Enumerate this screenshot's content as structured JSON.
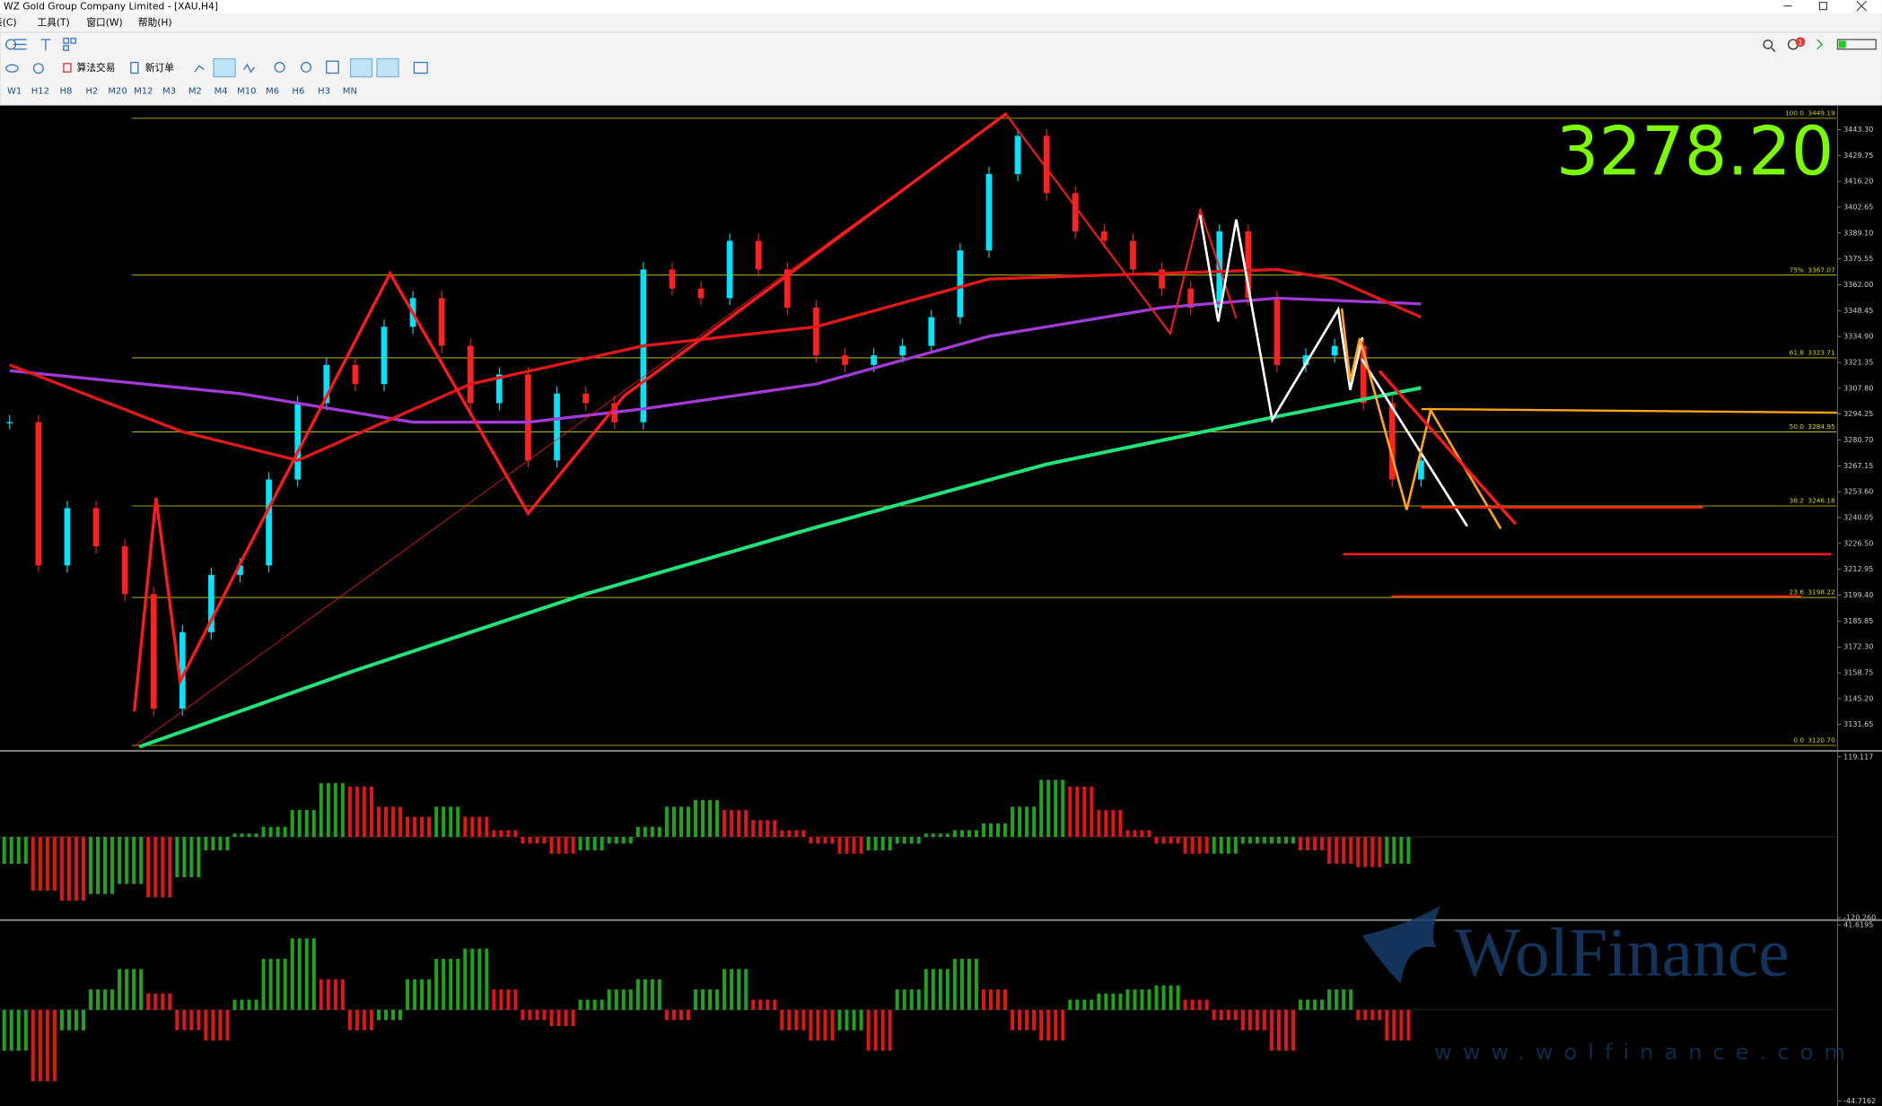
{
  "window": {
    "title": "WZ Gold Group Company Limited - [XAU,H4]",
    "menus": [
      "表(C)",
      "工具(T)",
      "窗口(W)",
      "帮助(H)"
    ],
    "toolbar": [
      "算法交易",
      "新订单"
    ],
    "timeframes": [
      "W1",
      "H12",
      "H8",
      "H2",
      "M20",
      "M12",
      "M3",
      "M2",
      "M4",
      "M10",
      "M6",
      "H6",
      "H3",
      "MN"
    ],
    "alert_count": 1
  },
  "chart_data": [
    {
      "type": "candlestick-line",
      "ylim": [
        3118.45,
        3455.87
      ],
      "yticks": [
        {
          "value": 3443.3,
          "label": "3443.30"
        },
        3429.75,
        {
          "value": 3416.2,
          "label": "3416.20"
        },
        3402.65,
        {
          "value": 3389.1,
          "label": "3389.10"
        },
        3375.55,
        {
          "value": 3362,
          "label": "3362.00"
        },
        3348.45,
        {
          "value": 3334.9,
          "label": "3334.90"
        },
        3321.35,
        {
          "value": 3307.8,
          "label": "3307.80"
        },
        3294.25,
        {
          "value": 3280.7,
          "label": "3280.70"
        },
        3267.15,
        {
          "value": 3253.6,
          "label": "3253.60"
        },
        3240.05,
        {
          "value": 3226.5,
          "label": "3226.50"
        },
        3212.95,
        {
          "value": 3199.4,
          "label": "3199.40"
        },
        3185.85,
        {
          "value": 3172.3,
          "label": "3172.30"
        },
        3158.75,
        {
          "value": 3145.2,
          "label": "3145.20"
        },
        3131.65
      ],
      "current_price": {
        "value": 3278.2,
        "label": "3278.20"
      },
      "fib_levels": [
        {
          "level": "100.0",
          "price": 3449.19
        },
        {
          "level": "75%",
          "price": 3367.07
        },
        {
          "level": "61.8",
          "price": 3323.71
        },
        {
          "level": "50.0",
          "price": 3284.95
        },
        {
          "level": "38.2",
          "price": 3246.18
        },
        {
          "level": "23.6",
          "price": 3198.22
        },
        {
          "level": "0.0",
          "price": {
            "value": 3120.7,
            "label": "3120.70"
          }
        }
      ],
      "series": [
        {
          "name": "close",
          "color": "#00e5ff",
          "x": [
            0,
            1,
            2,
            3,
            4,
            5,
            6,
            7,
            8,
            9,
            10,
            11,
            12,
            13,
            14,
            15,
            16,
            17,
            18,
            19,
            20,
            21,
            22,
            23,
            24,
            25,
            26,
            27,
            28,
            29,
            30,
            31,
            32,
            33,
            34,
            35,
            36,
            37,
            38,
            39,
            40,
            41,
            42,
            43,
            44,
            45,
            46,
            47,
            48,
            49
          ],
          "values": [
            3290,
            3215,
            3245,
            3225,
            3200,
            3140,
            3180,
            3210,
            3215,
            3260,
            3300,
            3320,
            3310,
            3340,
            3355,
            3330,
            3300,
            3315,
            3270,
            3305,
            3300,
            3290,
            3370,
            3360,
            3355,
            3385,
            3370,
            3350,
            3325,
            3320,
            3325,
            3330,
            3345,
            3380,
            3420,
            3440,
            3410,
            3390,
            3385,
            3370,
            3360,
            3350,
            3390,
            3355,
            3320,
            3325,
            3330,
            3300,
            3260,
            3270
          ]
        },
        {
          "name": "ma-green",
          "color": "#22e27a",
          "x": [
            4.5,
            12,
            20,
            28,
            36,
            44,
            49
          ],
          "values": [
            3120,
            3160,
            3200,
            3235,
            3268,
            3293,
            3308
          ]
        },
        {
          "name": "ma-purple",
          "color": "#a23ad6",
          "x": [
            0,
            8,
            14,
            18,
            22,
            28,
            34,
            40,
            44,
            49
          ],
          "values": [
            3317,
            3305,
            3290,
            3290,
            3297,
            3310,
            3335,
            3350,
            3355,
            3352
          ]
        },
        {
          "name": "ma-red",
          "color": "#e01818",
          "x": [
            0,
            6,
            10,
            16,
            22,
            28,
            34,
            40,
            44,
            46,
            49
          ],
          "values": [
            3320,
            3285,
            3270,
            3310,
            3330,
            3340,
            3365,
            3368,
            3370,
            3365,
            3345
          ]
        }
      ]
    },
    {
      "type": "histogram",
      "ylim": [
        {
          "value": -120.26,
          "label": "-120.260"
        },
        119.117
      ],
      "values": [
        -40,
        -80,
        -95,
        -85,
        -70,
        -90,
        -60,
        -20,
        5,
        15,
        40,
        80,
        75,
        45,
        30,
        45,
        30,
        10,
        -10,
        -25,
        -20,
        -10,
        15,
        45,
        55,
        40,
        25,
        10,
        -10,
        -25,
        -20,
        -10,
        5,
        10,
        20,
        45,
        85,
        75,
        40,
        10,
        -10,
        -25,
        -25,
        -10,
        -10,
        -20,
        -40,
        -45,
        -40
      ]
    },
    {
      "type": "histogram",
      "ylim": [
        -44.7162,
        41.6195
      ],
      "values": [
        -20,
        -35,
        -10,
        10,
        20,
        8,
        -10,
        -15,
        5,
        25,
        35,
        15,
        -10,
        -5,
        15,
        25,
        30,
        10,
        -5,
        -8,
        5,
        10,
        15,
        -5,
        10,
        20,
        5,
        -10,
        -15,
        -10,
        -20,
        10,
        20,
        25,
        10,
        -10,
        -15,
        5,
        8,
        10,
        12,
        5,
        -5,
        -10,
        -20,
        5,
        10,
        -5,
        -15
      ]
    }
  ],
  "watermark": {
    "brand": "WolFinance",
    "url": "www.wolfinance.com"
  }
}
